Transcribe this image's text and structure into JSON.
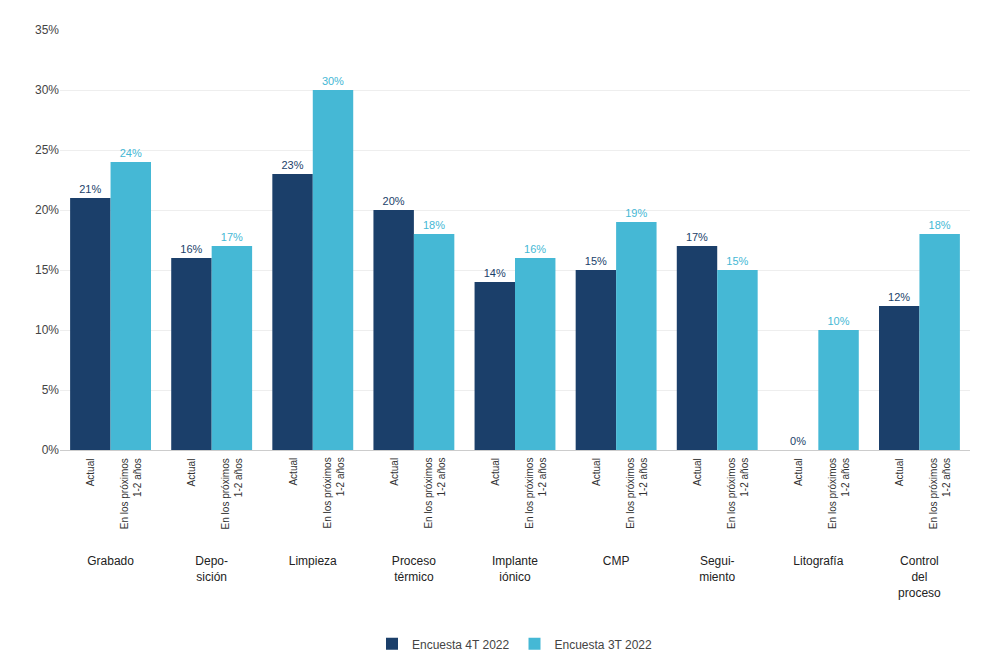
{
  "chart_data": {
    "type": "bar",
    "categories": [
      "Grabado",
      "Depo-\nsición",
      "Limpieza",
      "Proceso\ntérmico",
      "Implante\niónico",
      "CMP",
      "Segui-\nmiento",
      "Litografía",
      "Control\ndel\nproceso"
    ],
    "series": [
      {
        "name": "Encuesta 4T 2022",
        "color": "#1b3f6a",
        "values": [
          21,
          16,
          23,
          20,
          14,
          15,
          17,
          0,
          12
        ],
        "value_labels": [
          "21%",
          "16%",
          "23%",
          "20%",
          "14%",
          "15%",
          "17%",
          "0%",
          "12%"
        ]
      },
      {
        "name": "Encuesta 3T 2022",
        "color": "#45b8d5",
        "values": [
          24,
          17,
          30,
          18,
          16,
          19,
          15,
          10,
          18
        ],
        "value_labels": [
          "24%",
          "17%",
          "30%",
          "18%",
          "16%",
          "19%",
          "15%",
          "10%",
          "18%"
        ]
      }
    ],
    "annotations": [
      "Actual",
      "En los próximos\n1-2 años"
    ],
    "ylim": [
      0,
      35
    ],
    "yticks": [
      {
        "value": 0,
        "label": "0%"
      },
      {
        "value": 5,
        "label": "5%"
      },
      {
        "value": 10,
        "label": "10%"
      },
      {
        "value": 15,
        "label": "15%"
      },
      {
        "value": 20,
        "label": "20%"
      },
      {
        "value": 25,
        "label": "25%"
      },
      {
        "value": 30,
        "label": "30%"
      },
      {
        "value": 35,
        "label": "35%"
      }
    ],
    "grid": true,
    "data_labels": true,
    "legend": "bottom"
  }
}
